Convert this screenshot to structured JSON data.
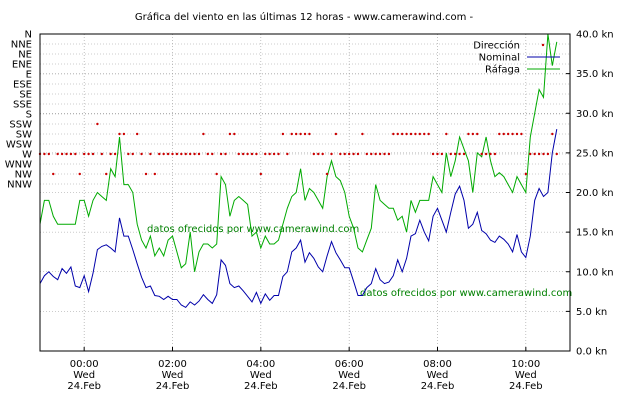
{
  "chart_data": {
    "type": "line",
    "title": "Gráfica del viento en las últimas 12 horas - www.camerawind.com -",
    "watermarks": [
      "datos ofrecidos por www.camerawind.com",
      "datos ofrecidos por www.camerawind.com"
    ],
    "colors": {
      "direction": "#cc0000",
      "nominal": "#0000aa",
      "gust": "#00aa00",
      "watermark": "#008000",
      "grid": "#999999"
    },
    "legend": {
      "placement": "top-right",
      "entries": [
        "Dirección",
        "Nominal",
        "Ráfaga"
      ]
    },
    "x_axis": {
      "range_hours": [
        -1.0,
        11.0
      ],
      "ticks": [
        {
          "hour": 0,
          "time": "00:00",
          "day": "Wed",
          "date": "24.Feb"
        },
        {
          "hour": 2,
          "time": "02:00",
          "day": "Wed",
          "date": "24.Feb"
        },
        {
          "hour": 4,
          "time": "04:00",
          "day": "Wed",
          "date": "24.Feb"
        },
        {
          "hour": 6,
          "time": "06:00",
          "day": "Wed",
          "date": "24.Feb"
        },
        {
          "hour": 8,
          "time": "08:00",
          "day": "Wed",
          "date": "24.Feb"
        },
        {
          "hour": 10,
          "time": "10:00",
          "day": "Wed",
          "date": "24.Feb"
        }
      ]
    },
    "y_right": {
      "range": [
        0,
        40
      ],
      "ticks": [
        "0.0 kn",
        "5.0 kn",
        "10.0 kn",
        "15.0 kn",
        "20.0 kn",
        "25.0 kn",
        "30.0 kn",
        "35.0 kn",
        "40.0 kn"
      ]
    },
    "y_left": {
      "labels": [
        "N",
        "NNE",
        "NE",
        "ENE",
        "E",
        "ESE",
        "SE",
        "SSE",
        "S",
        "SSW",
        "SW",
        "WSW",
        "W",
        "WNW",
        "NW",
        "NNW"
      ]
    },
    "series": [
      {
        "name": "Nominal",
        "x": [
          -1.0,
          -0.9,
          -0.8,
          -0.7,
          -0.6,
          -0.5,
          -0.4,
          -0.3,
          -0.2,
          -0.1,
          0.0,
          0.1,
          0.2,
          0.3,
          0.4,
          0.5,
          0.6,
          0.7,
          0.8,
          0.9,
          1.0,
          1.1,
          1.2,
          1.3,
          1.4,
          1.5,
          1.6,
          1.7,
          1.8,
          1.9,
          2.0,
          2.1,
          2.2,
          2.3,
          2.4,
          2.5,
          2.6,
          2.7,
          2.8,
          2.9,
          3.0,
          3.1,
          3.2,
          3.3,
          3.4,
          3.5,
          3.6,
          3.7,
          3.8,
          3.9,
          4.0,
          4.1,
          4.2,
          4.3,
          4.4,
          4.5,
          4.6,
          4.7,
          4.8,
          4.9,
          5.0,
          5.1,
          5.2,
          5.3,
          5.4,
          5.5,
          5.6,
          5.7,
          5.8,
          5.9,
          6.0,
          6.1,
          6.2,
          6.3,
          6.4,
          6.5,
          6.6,
          6.7,
          6.8,
          6.9,
          7.0,
          7.1,
          7.2,
          7.3,
          7.4,
          7.5,
          7.6,
          7.7,
          7.8,
          7.9,
          8.0,
          8.1,
          8.2,
          8.3,
          8.4,
          8.5,
          8.6,
          8.7,
          8.8,
          8.9,
          9.0,
          9.1,
          9.2,
          9.3,
          9.4,
          9.5,
          9.6,
          9.7,
          9.8,
          9.9,
          10.0,
          10.1,
          10.2,
          10.3,
          10.4,
          10.5,
          10.6,
          10.7
        ],
        "values": [
          8.5,
          9.5,
          10.0,
          9.4,
          9.0,
          10.4,
          9.8,
          10.6,
          8.2,
          8.0,
          9.5,
          7.5,
          9.8,
          12.8,
          13.2,
          13.4,
          13.0,
          12.5,
          16.8,
          14.5,
          14.5,
          12.8,
          11.0,
          9.3,
          8.0,
          8.2,
          7.0,
          6.9,
          6.5,
          6.9,
          6.5,
          6.5,
          5.8,
          5.5,
          6.2,
          5.8,
          6.3,
          7.1,
          6.5,
          6.0,
          7.1,
          11.5,
          10.8,
          8.5,
          8.0,
          8.2,
          7.6,
          6.9,
          6.2,
          7.4,
          6.0,
          7.2,
          6.4,
          7.0,
          7.0,
          9.4,
          10.0,
          12.5,
          13.0,
          14.0,
          11.2,
          12.4,
          11.7,
          10.6,
          10.0,
          12.0,
          13.8,
          12.4,
          11.5,
          10.5,
          10.5,
          8.8,
          7.0,
          7.0,
          8.0,
          8.5,
          10.4,
          9.0,
          8.5,
          8.7,
          9.5,
          11.5,
          10.0,
          11.7,
          14.5,
          14.8,
          16.5,
          15.0,
          13.9,
          17.0,
          18.0,
          16.5,
          15.0,
          17.5,
          19.8,
          20.8,
          19.0,
          15.5,
          16.0,
          17.5,
          15.2,
          14.8,
          14.0,
          13.7,
          14.5,
          14.1,
          13.5,
          12.5,
          14.7,
          12.5,
          11.8,
          14.5,
          19.0,
          20.5,
          19.5,
          20.0,
          25.0,
          28.0
        ]
      },
      {
        "name": "Ráfaga",
        "x": [
          -1.0,
          -0.9,
          -0.8,
          -0.7,
          -0.6,
          -0.5,
          -0.4,
          -0.3,
          -0.2,
          -0.1,
          0.0,
          0.1,
          0.2,
          0.3,
          0.4,
          0.5,
          0.6,
          0.7,
          0.8,
          0.9,
          1.0,
          1.1,
          1.2,
          1.3,
          1.4,
          1.5,
          1.6,
          1.7,
          1.8,
          1.9,
          2.0,
          2.1,
          2.2,
          2.3,
          2.4,
          2.5,
          2.6,
          2.7,
          2.8,
          2.9,
          3.0,
          3.1,
          3.2,
          3.3,
          3.4,
          3.5,
          3.6,
          3.7,
          3.8,
          3.9,
          4.0,
          4.1,
          4.2,
          4.3,
          4.4,
          4.5,
          4.6,
          4.7,
          4.8,
          4.9,
          5.0,
          5.1,
          5.2,
          5.3,
          5.4,
          5.5,
          5.6,
          5.7,
          5.8,
          5.9,
          6.0,
          6.1,
          6.2,
          6.3,
          6.4,
          6.5,
          6.6,
          6.7,
          6.8,
          6.9,
          7.0,
          7.1,
          7.2,
          7.3,
          7.4,
          7.5,
          7.6,
          7.7,
          7.8,
          7.9,
          8.0,
          8.1,
          8.2,
          8.3,
          8.4,
          8.5,
          8.6,
          8.7,
          8.8,
          8.9,
          9.0,
          9.1,
          9.2,
          9.3,
          9.4,
          9.5,
          9.6,
          9.7,
          9.8,
          9.9,
          10.0,
          10.1,
          10.2,
          10.3,
          10.4,
          10.5,
          10.6,
          10.7
        ],
        "values": [
          16.0,
          19.0,
          19.0,
          17.0,
          16.0,
          16.0,
          16.0,
          16.0,
          16.0,
          19.0,
          19.0,
          17.0,
          19.0,
          20.0,
          19.5,
          19.0,
          23.0,
          22.0,
          27.0,
          21.0,
          21.0,
          20.0,
          16.0,
          14.0,
          13.0,
          14.5,
          12.0,
          13.0,
          12.0,
          14.0,
          14.5,
          12.5,
          10.5,
          11.0,
          15.0,
          10.0,
          12.5,
          13.5,
          13.5,
          13.0,
          13.5,
          22.0,
          21.0,
          17.0,
          19.0,
          19.5,
          19.0,
          18.5,
          14.5,
          15.0,
          13.0,
          14.5,
          13.5,
          13.5,
          14.0,
          16.0,
          18.0,
          19.5,
          20.0,
          23.0,
          19.0,
          20.5,
          20.0,
          19.0,
          18.0,
          22.0,
          24.0,
          22.0,
          21.5,
          20.0,
          17.0,
          15.5,
          13.0,
          12.5,
          14.0,
          15.5,
          21.0,
          19.0,
          18.5,
          18.0,
          18.0,
          16.5,
          17.0,
          15.0,
          19.0,
          17.5,
          19.0,
          19.0,
          19.0,
          22.0,
          21.0,
          20.0,
          25.0,
          22.0,
          24.0,
          27.0,
          25.5,
          24.0,
          20.0,
          25.0,
          24.5,
          27.0,
          24.0,
          22.0,
          22.5,
          22.0,
          21.0,
          20.0,
          22.0,
          21.0,
          20.0,
          27.0,
          30.0,
          33.0,
          32.0,
          40.0,
          36.0,
          39.0
        ]
      },
      {
        "name": "Dirección",
        "x": [
          -1.0,
          -0.9,
          -0.8,
          -0.7,
          -0.6,
          -0.5,
          -0.4,
          -0.3,
          -0.2,
          -0.1,
          0.0,
          0.1,
          0.2,
          0.3,
          0.4,
          0.5,
          0.6,
          0.7,
          0.8,
          0.9,
          1.0,
          1.1,
          1.2,
          1.3,
          1.4,
          1.5,
          1.6,
          1.7,
          1.8,
          1.9,
          2.0,
          2.1,
          2.2,
          2.3,
          2.4,
          2.5,
          2.6,
          2.7,
          2.8,
          2.9,
          3.0,
          3.1,
          3.2,
          3.3,
          3.4,
          3.5,
          3.6,
          3.7,
          3.8,
          3.9,
          4.0,
          4.1,
          4.2,
          4.3,
          4.4,
          4.5,
          4.6,
          4.7,
          4.8,
          4.9,
          5.0,
          5.1,
          5.2,
          5.3,
          5.4,
          5.5,
          5.6,
          5.7,
          5.8,
          5.9,
          6.0,
          6.1,
          6.2,
          6.3,
          6.4,
          6.5,
          6.6,
          6.7,
          6.8,
          6.9,
          7.0,
          7.1,
          7.2,
          7.3,
          7.4,
          7.5,
          7.6,
          7.7,
          7.8,
          7.9,
          8.0,
          8.1,
          8.2,
          8.3,
          8.4,
          8.5,
          8.6,
          8.7,
          8.8,
          8.9,
          9.0,
          9.1,
          9.2,
          9.3,
          9.4,
          9.5,
          9.6,
          9.7,
          9.8,
          9.9,
          10.0,
          10.1,
          10.2,
          10.3,
          10.4,
          10.5,
          10.6,
          10.7
        ],
        "values": [
          "W",
          "W",
          "W",
          "NW",
          "W",
          "W",
          "W",
          "W",
          "W",
          "NW",
          "W",
          "W",
          "W",
          "SSW",
          "W",
          "NW",
          "W",
          "W",
          "SW",
          "SW",
          "W",
          "W",
          "SW",
          "W",
          "NW",
          "W",
          "NW",
          "W",
          "W",
          "W",
          "W",
          "W",
          "W",
          "W",
          "W",
          "W",
          "W",
          "SW",
          "W",
          "W",
          "NW",
          "W",
          "W",
          "SW",
          "SW",
          "W",
          "W",
          "W",
          "W",
          "W",
          "NW",
          "W",
          "W",
          "W",
          "W",
          "SW",
          "W",
          "SW",
          "SW",
          "SW",
          "SW",
          "SW",
          "W",
          "W",
          "W",
          "NW",
          "W",
          "SW",
          "W",
          "W",
          "W",
          "W",
          "W",
          "SW",
          "W",
          "W",
          "W",
          "W",
          "W",
          "W",
          "SW",
          "SW",
          "SW",
          "SW",
          "SW",
          "SW",
          "SW",
          "SW",
          "SW",
          "W",
          "W",
          "W",
          "SW",
          "W",
          "W",
          "W",
          "W",
          "SW",
          "SW",
          "SW",
          "W",
          "W",
          "W",
          "W",
          "SW",
          "SW",
          "SW",
          "SW",
          "SW",
          "SW",
          "NW",
          "W",
          "W",
          "W",
          "W",
          "W",
          "SW",
          "W"
        ]
      }
    ]
  }
}
